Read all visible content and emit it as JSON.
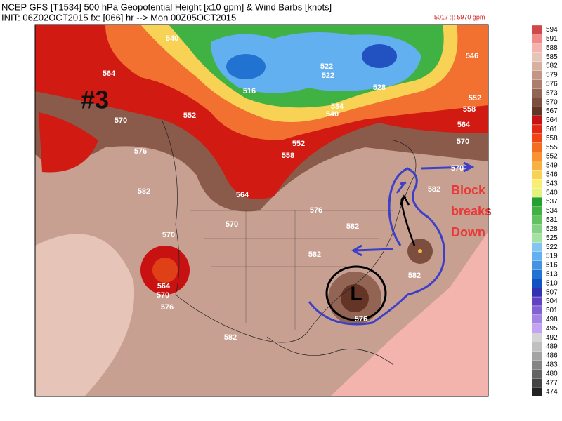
{
  "header": {
    "line1": "NCEP GFS [T1534] 500 hPa Geopotential Height [x10 gpm] & Wind Barbs [knots]",
    "line2": "INIT: 06Z02OCT2015 fx: [066] hr --> Mon 00Z05OCT2015",
    "range": "5017 :|: 5970 gpm"
  },
  "annotations": {
    "number": "#3",
    "block": [
      "Block",
      "breaks",
      "Down"
    ],
    "low": "L"
  },
  "contour_labels": [
    "540",
    "564",
    "570",
    "576",
    "582",
    "570",
    "564",
    "570",
    "576",
    "582",
    "552",
    "558",
    "552",
    "564",
    "570",
    "576",
    "582",
    "582",
    "582",
    "576",
    "570",
    "582",
    "564",
    "558",
    "552",
    "570",
    "516",
    "522",
    "522",
    "528",
    "534",
    "540",
    "546"
  ],
  "colorbar": [
    {
      "label": "594",
      "color": "#d04848"
    },
    {
      "label": "591",
      "color": "#f08a8a"
    },
    {
      "label": "588",
      "color": "#f2b4ac"
    },
    {
      "label": "585",
      "color": "#e6c4b8"
    },
    {
      "label": "582",
      "color": "#d8b0a2"
    },
    {
      "label": "579",
      "color": "#c49484"
    },
    {
      "label": "576",
      "color": "#ac7c6c"
    },
    {
      "label": "573",
      "color": "#926454"
    },
    {
      "label": "570",
      "color": "#7c4e3e"
    },
    {
      "label": "567",
      "color": "#643426"
    },
    {
      "label": "564",
      "color": "#c81212"
    },
    {
      "label": "561",
      "color": "#e02812"
    },
    {
      "label": "558",
      "color": "#f04414"
    },
    {
      "label": "555",
      "color": "#f26e22"
    },
    {
      "label": "552",
      "color": "#f89232"
    },
    {
      "label": "549",
      "color": "#f8b244"
    },
    {
      "label": "546",
      "color": "#f8d254"
    },
    {
      "label": "543",
      "color": "#f8ee72"
    },
    {
      "label": "540",
      "color": "#e2f27a"
    },
    {
      "label": "537",
      "color": "#22a034"
    },
    {
      "label": "534",
      "color": "#40b244"
    },
    {
      "label": "531",
      "color": "#62c262"
    },
    {
      "label": "528",
      "color": "#84d284"
    },
    {
      "label": "525",
      "color": "#a4e2a4"
    },
    {
      "label": "522",
      "color": "#84c4f2"
    },
    {
      "label": "519",
      "color": "#62b0f0"
    },
    {
      "label": "516",
      "color": "#4492e2"
    },
    {
      "label": "513",
      "color": "#2272d2"
    },
    {
      "label": "510",
      "color": "#1252c2"
    },
    {
      "label": "507",
      "color": "#3232b2"
    },
    {
      "label": "504",
      "color": "#6242c2"
    },
    {
      "label": "501",
      "color": "#8262d2"
    },
    {
      "label": "498",
      "color": "#a484e2"
    },
    {
      "label": "495",
      "color": "#c4a4f2"
    },
    {
      "label": "492",
      "color": "#d4d4d4"
    },
    {
      "label": "489",
      "color": "#c0c0c0"
    },
    {
      "label": "486",
      "color": "#a4a4a4"
    },
    {
      "label": "483",
      "color": "#848484"
    },
    {
      "label": "480",
      "color": "#646464"
    },
    {
      "label": "477",
      "color": "#444444"
    },
    {
      "label": "474",
      "color": "#222222"
    }
  ]
}
